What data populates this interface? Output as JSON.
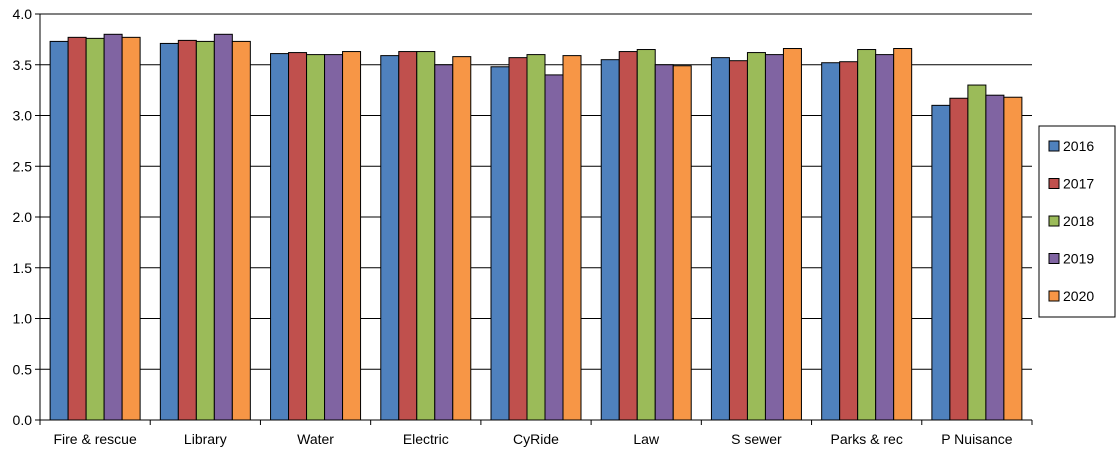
{
  "chart_data": {
    "type": "bar",
    "title": "",
    "xlabel": "",
    "ylabel": "",
    "ylim": [
      0,
      4
    ],
    "ytick_step": 0.5,
    "grid": "horizontal",
    "legend_position": "right",
    "categories": [
      "Fire & rescue",
      "Library",
      "Water",
      "Electric",
      "CyRide",
      "Law",
      "S sewer",
      "Parks & rec",
      "P Nuisance"
    ],
    "series": [
      {
        "name": "2016",
        "color": "#4F81BD",
        "values": [
          3.73,
          3.71,
          3.61,
          3.59,
          3.48,
          3.55,
          3.57,
          3.52,
          3.1
        ]
      },
      {
        "name": "2017",
        "color": "#C0504D",
        "values": [
          3.77,
          3.74,
          3.62,
          3.63,
          3.57,
          3.63,
          3.54,
          3.53,
          3.17
        ]
      },
      {
        "name": "2018",
        "color": "#9BBB59",
        "values": [
          3.76,
          3.73,
          3.6,
          3.63,
          3.6,
          3.65,
          3.62,
          3.65,
          3.3
        ]
      },
      {
        "name": "2019",
        "color": "#8064A2",
        "values": [
          3.8,
          3.8,
          3.6,
          3.5,
          3.4,
          3.5,
          3.6,
          3.6,
          3.2
        ]
      },
      {
        "name": "2020",
        "color": "#F79646",
        "values": [
          3.77,
          3.73,
          3.63,
          3.58,
          3.59,
          3.49,
          3.66,
          3.66,
          3.18
        ]
      }
    ],
    "ytick_labels": [
      "0.0",
      "0.5",
      "1.0",
      "1.5",
      "2.0",
      "2.5",
      "3.0",
      "3.5",
      "4.0"
    ]
  }
}
